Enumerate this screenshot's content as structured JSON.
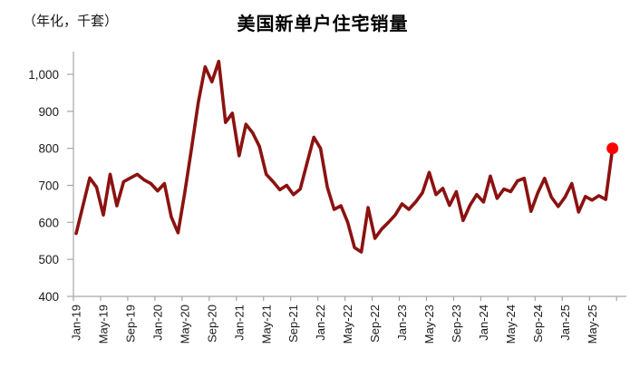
{
  "header": {
    "title": "美国新单户住宅销量",
    "unit_label": "（年化，千套）"
  },
  "chart_data": {
    "type": "line",
    "title": "美国新单户住宅销量",
    "ylabel": "（年化，千套）",
    "xlabel": "",
    "grid": false,
    "legend": "none",
    "ylim": [
      400,
      1060
    ],
    "y_ticks": [
      400,
      500,
      600,
      700,
      800,
      900,
      1000
    ],
    "y_tick_labels": [
      "400",
      "500",
      "600",
      "700",
      "800",
      "900",
      "1,000"
    ],
    "x_tick_labels": [
      "Jan-19",
      "May-19",
      "Sep-19",
      "Jan-20",
      "May-20",
      "Sep-20",
      "Jan-21",
      "May-21",
      "Sep-21",
      "Jan-22",
      "May-22",
      "Sep-22",
      "Jan-23",
      "May-23",
      "Sep-23",
      "Jan-24",
      "May-24",
      "Sep-24",
      "Jan-25",
      "May-25"
    ],
    "x": [
      "Jan-19",
      "Feb-19",
      "Mar-19",
      "Apr-19",
      "May-19",
      "Jun-19",
      "Jul-19",
      "Aug-19",
      "Sep-19",
      "Oct-19",
      "Nov-19",
      "Dec-19",
      "Jan-20",
      "Feb-20",
      "Mar-20",
      "Apr-20",
      "May-20",
      "Jun-20",
      "Jul-20",
      "Aug-20",
      "Sep-20",
      "Oct-20",
      "Nov-20",
      "Dec-20",
      "Jan-21",
      "Feb-21",
      "Mar-21",
      "Apr-21",
      "May-21",
      "Jun-21",
      "Jul-21",
      "Aug-21",
      "Sep-21",
      "Oct-21",
      "Nov-21",
      "Dec-21",
      "Jan-22",
      "Feb-22",
      "Mar-22",
      "Apr-22",
      "May-22",
      "Jun-22",
      "Jul-22",
      "Aug-22",
      "Sep-22",
      "Oct-22",
      "Nov-22",
      "Dec-22",
      "Jan-23",
      "Feb-23",
      "Mar-23",
      "Apr-23",
      "May-23",
      "Jun-23",
      "Jul-23",
      "Aug-23",
      "Sep-23",
      "Oct-23",
      "Nov-23",
      "Dec-23",
      "Jan-24",
      "Feb-24",
      "Mar-24",
      "Apr-24",
      "May-24",
      "Jun-24",
      "Jul-24",
      "Aug-24",
      "Sep-24",
      "Oct-24",
      "Nov-24",
      "Dec-24",
      "Jan-25",
      "Feb-25",
      "Mar-25",
      "Apr-25",
      "May-25",
      "Jun-25",
      "Jul-25",
      "Aug-25"
    ],
    "values": [
      570,
      645,
      720,
      695,
      620,
      730,
      645,
      710,
      720,
      730,
      715,
      705,
      685,
      705,
      615,
      572,
      680,
      800,
      925,
      1020,
      980,
      1035,
      870,
      895,
      780,
      865,
      842,
      805,
      730,
      710,
      688,
      700,
      675,
      690,
      760,
      830,
      800,
      695,
      635,
      645,
      600,
      532,
      520,
      640,
      557,
      582,
      600,
      620,
      650,
      635,
      655,
      680,
      735,
      675,
      692,
      646,
      683,
      605,
      646,
      675,
      655,
      725,
      665,
      690,
      683,
      712,
      719,
      630,
      680,
      719,
      668,
      643,
      668,
      705,
      628,
      670,
      660,
      672,
      662,
      800
    ],
    "last_point": {
      "x": "Aug-25",
      "value": 800,
      "highlighted": true
    },
    "colors": {
      "line": "#8B1210",
      "last_point_marker": "#FF0000",
      "axis": "#A6A6A6",
      "tick_label": "#1a1a1a",
      "title": "#000000"
    }
  }
}
